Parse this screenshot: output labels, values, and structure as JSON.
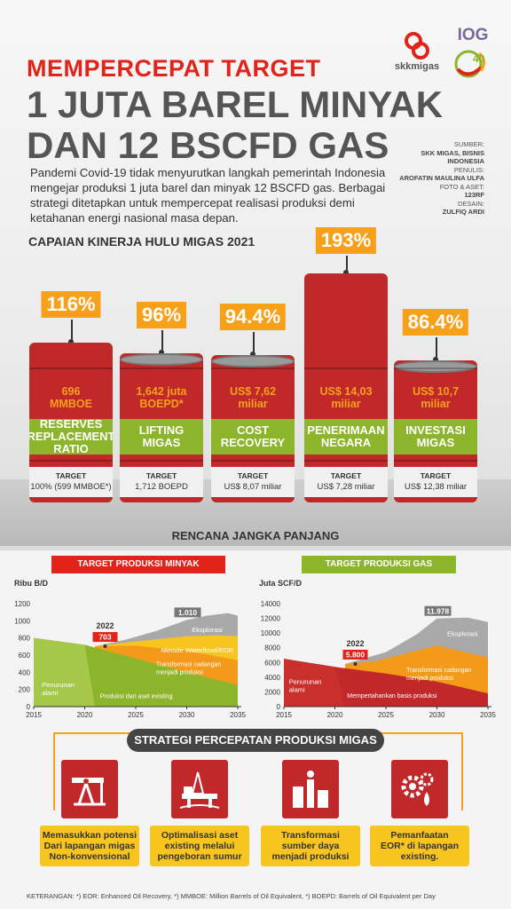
{
  "header": {
    "title_line1": "MEMPERCEPAT TARGET",
    "title_line2": "1 JUTA BAREL MINYAK",
    "title_line3": "DAN 12 BSCFD GAS",
    "intro": "Pandemi Covid-19 tidak menyurutkan langkah pemerintah Indonesia mengejar produksi 1 juta barel dan minyak 12 BSCFD gas. Berbagai strategi ditetapkan untuk mempercepat realisasi produksi demi ketahanan energi nasional masa depan."
  },
  "logos": {
    "skk": "skkmigas",
    "iog": "IOG",
    "iog_sub": "40"
  },
  "credits": {
    "sumber_label": "SUMBER:",
    "sumber": "SKK MIGAS, BISNIS INDONESIA",
    "penulis_label": "PENULIS:",
    "penulis": "AROFATIN MAULINA ULFA",
    "foto_label": "FOTO & ASET:",
    "foto": "123RF",
    "desain_label": "DESAIN:",
    "desain": "ZULFIQ ARDI"
  },
  "kinerja": {
    "title": "CAPAIAN KINERJA HULU MIGAS 2021",
    "items": [
      {
        "pct": "116%",
        "value1": "696",
        "value2": "MMBOE",
        "label1": "RESERVES",
        "label2": "REPLACEMENT RATIO",
        "target_label": "TARGET",
        "target": "100% (599 MMBOE*)",
        "fill": 1.16
      },
      {
        "pct": "96%",
        "value1": "1,642 juta",
        "value2": "BOEPD*",
        "label1": "LIFTING",
        "label2": "MIGAS",
        "target_label": "TARGET",
        "target": "1,712 BOEPD",
        "fill": 0.96
      },
      {
        "pct": "94.4%",
        "value1": "US$ 7,62",
        "value2": "miliar",
        "label1": "COST RECOVERY",
        "label2": "",
        "target_label": "TARGET",
        "target": "US$ 8,07 miliar",
        "fill": 0.944
      },
      {
        "pct": "193%",
        "value1": "US$ 14,03",
        "value2": "miliar",
        "label1": "PENERIMAAN",
        "label2": "NEGARA",
        "target_label": "TARGET",
        "target": "US$ 7,28 miliar",
        "fill": 1.93
      },
      {
        "pct": "86.4%",
        "value1": "US$ 10,7",
        "value2": "miliar",
        "label1": "INVESTASI",
        "label2": "MIGAS",
        "target_label": "TARGET",
        "target": "US$ 12,38 miliar",
        "fill": 0.864
      }
    ]
  },
  "rencana": {
    "title": "RENCANA JANGKA PANJANG",
    "minyak_title": "TARGET PRODUKSI MINYAK",
    "gas_title": "TARGET PRODUKSI GAS"
  },
  "chart_data": [
    {
      "type": "area",
      "title": "TARGET PRODUKSI MINYAK",
      "ylabel": "Ribu B/D",
      "x": [
        2015,
        2020,
        2025,
        2030,
        2035
      ],
      "ylim": [
        0,
        1200
      ],
      "yticks": [
        "0",
        "200",
        "400",
        "600",
        "800",
        "1000",
        "1200"
      ],
      "xticks": [
        "2015",
        "2020",
        "2025",
        "2030",
        "2035"
      ],
      "series": [
        {
          "name": "Produksi dari aset existing",
          "color": "#8db52c",
          "values": [
            800,
            720,
            560,
            400,
            250
          ]
        },
        {
          "name": "Transformasi cadangan menjadi produksi",
          "color": "#f39a1b"
        },
        {
          "name": "Metode Waterflood/EOR",
          "color": "#f7c51e"
        },
        {
          "name": "Eksplorasi",
          "color": "#9a9a9a"
        }
      ],
      "annotations": [
        {
          "label": "2022",
          "value": "703",
          "x": 2022,
          "y": 703
        },
        {
          "value": "1.010",
          "x": 2030,
          "y": 1010
        }
      ],
      "area_labels": [
        "Penurunan alami",
        "Produksi dari aset existing",
        "Transformasi cadangan menjadi produksi",
        "Metode Waterflood/EOR",
        "Eksplorasi"
      ],
      "grid": false
    },
    {
      "type": "area",
      "title": "TARGET PRODUKSI GAS",
      "ylabel": "Juta SCF/D",
      "x": [
        2015,
        2020,
        2025,
        2030,
        2035
      ],
      "ylim": [
        0,
        14000
      ],
      "yticks": [
        "0",
        "2000",
        "4000",
        "6000",
        "8000",
        "10000",
        "12000",
        "14000"
      ],
      "xticks": [
        "2015",
        "2020",
        "2025",
        "2030",
        "2035"
      ],
      "series": [
        {
          "name": "Mempertahankan basis produksi",
          "color": "#c0282a",
          "values": [
            6500,
            5400,
            4500,
            3400,
            1800
          ]
        },
        {
          "name": "Transformasi cadangan menjadi produksi",
          "color": "#f39a1b"
        },
        {
          "name": "Eksplorasi",
          "color": "#9a9a9a"
        }
      ],
      "annotations": [
        {
          "label": "2022",
          "value": "5.800",
          "x": 2022,
          "y": 5800
        },
        {
          "value": "11.978",
          "x": 2030,
          "y": 11978
        }
      ],
      "area_labels": [
        "Penurunan alami",
        "Mempertahankan basis produksi",
        "Transformasi cadangan menjadi produksi",
        "Eksplorasi"
      ],
      "grid": false
    }
  ],
  "strategi": {
    "title": "STRATEGI PERCEPATAN PRODUKSI MIGAS",
    "items": [
      {
        "icon": "pumpjack-icon",
        "l1": "Memasukkan potensi",
        "l2": "Dari lapangan migas",
        "l3": "Non-konvensional"
      },
      {
        "icon": "offshore-rig-icon",
        "l1": "Optimalisasi aset",
        "l2": "existing melalui",
        "l3": "pengeboran sumur"
      },
      {
        "icon": "refinery-icon",
        "l1": "Transformasi",
        "l2": "sumber daya",
        "l3": "menjadi produksi"
      },
      {
        "icon": "gear-drop-icon",
        "l1": "Pemanfaatan",
        "l2": "EOR* di lapangan",
        "l3": "existing."
      }
    ]
  },
  "footnote": "KETERANGAN: *) EOR: Enhanced Oil Recovery, *) MMBOE: Million Barrels of Oil Equivalent, *) BOEPD: Barrels of Oil Equivalent per Day",
  "colors": {
    "red": "#e2231a",
    "barrel_red": "#c0282a",
    "green": "#8db52c",
    "orange": "#f7a11a",
    "yellow": "#f7c51e",
    "grey": "#9a9a9a"
  }
}
